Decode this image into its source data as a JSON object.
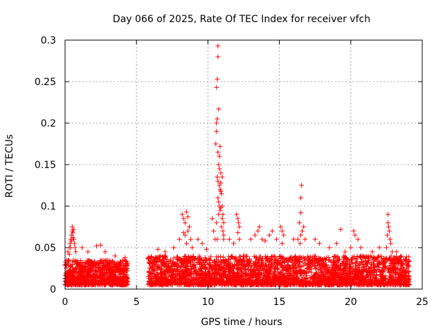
{
  "chart_data": {
    "type": "scatter",
    "title": "Day 066 of 2025, Rate Of TEC Index for receiver vfch",
    "xlabel": "GPS time / hours",
    "ylabel": "ROTI / TECUs",
    "xlim": [
      0,
      25
    ],
    "ylim": [
      0,
      0.3
    ],
    "xticks": [
      0,
      5,
      10,
      15,
      20,
      25
    ],
    "xtick_labels": [
      "0",
      "5",
      "10",
      "15",
      "20",
      "25"
    ],
    "yticks": [
      0,
      0.05,
      0.1,
      0.15,
      0.2,
      0.25,
      0.3
    ],
    "ytick_labels": [
      "0",
      "0.05",
      "0.1",
      "0.15",
      "0.2",
      "0.25",
      "0.3"
    ],
    "grid": true,
    "marker": "+",
    "series": [
      {
        "name": "ROTI",
        "color": "#ff0000",
        "dense_segments": [
          {
            "x_start": 0.0,
            "x_end": 4.4,
            "y_min": 0.005,
            "y_max": 0.035,
            "count": 900
          },
          {
            "x_start": 5.8,
            "x_end": 24.1,
            "y_min": 0.005,
            "y_max": 0.04,
            "count": 3000
          }
        ],
        "points": [
          [
            0.2,
            0.045
          ],
          [
            0.3,
            0.05
          ],
          [
            0.35,
            0.055
          ],
          [
            0.4,
            0.06
          ],
          [
            0.45,
            0.065
          ],
          [
            0.5,
            0.07
          ],
          [
            0.5,
            0.075
          ],
          [
            0.55,
            0.068
          ],
          [
            0.6,
            0.06
          ],
          [
            0.65,
            0.055
          ],
          [
            0.7,
            0.05
          ],
          [
            0.45,
            0.058
          ],
          [
            0.55,
            0.062
          ],
          [
            0.6,
            0.072
          ],
          [
            0.4,
            0.05
          ],
          [
            0.75,
            0.045
          ],
          [
            0.3,
            0.042
          ],
          [
            1.2,
            0.05
          ],
          [
            1.6,
            0.045
          ],
          [
            2.2,
            0.052
          ],
          [
            2.5,
            0.053
          ],
          [
            2.8,
            0.045
          ],
          [
            3.5,
            0.04
          ],
          [
            4.2,
            0.038
          ],
          [
            6.5,
            0.048
          ],
          [
            7.0,
            0.045
          ],
          [
            7.6,
            0.05
          ],
          [
            8.0,
            0.06
          ],
          [
            8.2,
            0.09
          ],
          [
            8.3,
            0.085
          ],
          [
            8.4,
            0.08
          ],
          [
            8.5,
            0.093
          ],
          [
            8.6,
            0.087
          ],
          [
            8.7,
            0.075
          ],
          [
            8.4,
            0.065
          ],
          [
            8.6,
            0.07
          ],
          [
            8.8,
            0.06
          ],
          [
            8.5,
            0.055
          ],
          [
            8.3,
            0.068
          ],
          [
            8.9,
            0.05
          ],
          [
            9.3,
            0.06
          ],
          [
            9.6,
            0.055
          ],
          [
            9.9,
            0.048
          ],
          [
            10.3,
            0.085
          ],
          [
            10.4,
            0.07
          ],
          [
            10.5,
            0.06
          ],
          [
            10.55,
            0.175
          ],
          [
            10.6,
            0.19
          ],
          [
            10.6,
            0.2
          ],
          [
            10.65,
            0.205
          ],
          [
            10.6,
            0.243
          ],
          [
            10.65,
            0.253
          ],
          [
            10.7,
            0.28
          ],
          [
            10.7,
            0.293
          ],
          [
            10.75,
            0.217
          ],
          [
            10.7,
            0.165
          ],
          [
            10.8,
            0.16
          ],
          [
            10.85,
            0.172
          ],
          [
            10.9,
            0.14
          ],
          [
            10.75,
            0.15
          ],
          [
            10.65,
            0.135
          ],
          [
            10.7,
            0.13
          ],
          [
            10.8,
            0.125
          ],
          [
            10.85,
            0.12
          ],
          [
            10.9,
            0.118
          ],
          [
            10.7,
            0.11
          ],
          [
            10.75,
            0.105
          ],
          [
            10.8,
            0.1
          ],
          [
            10.85,
            0.095
          ],
          [
            10.9,
            0.098
          ],
          [
            11.0,
            0.1
          ],
          [
            11.05,
            0.09
          ],
          [
            11.0,
            0.085
          ],
          [
            11.1,
            0.08
          ],
          [
            10.95,
            0.075
          ],
          [
            11.05,
            0.07
          ],
          [
            11.1,
            0.065
          ],
          [
            10.6,
            0.08
          ],
          [
            10.75,
            0.09
          ],
          [
            10.95,
            0.115
          ],
          [
            10.9,
            0.128
          ],
          [
            11.0,
            0.135
          ],
          [
            10.8,
            0.145
          ],
          [
            11.1,
            0.06
          ],
          [
            10.65,
            0.06
          ],
          [
            11.5,
            0.06
          ],
          [
            11.8,
            0.055
          ],
          [
            12.0,
            0.09
          ],
          [
            12.1,
            0.085
          ],
          [
            12.15,
            0.08
          ],
          [
            12.2,
            0.075
          ],
          [
            12.1,
            0.068
          ],
          [
            12.2,
            0.06
          ],
          [
            13.0,
            0.06
          ],
          [
            13.3,
            0.065
          ],
          [
            13.5,
            0.07
          ],
          [
            13.6,
            0.075
          ],
          [
            13.8,
            0.06
          ],
          [
            14.0,
            0.058
          ],
          [
            14.3,
            0.065
          ],
          [
            14.5,
            0.07
          ],
          [
            14.8,
            0.06
          ],
          [
            15.1,
            0.075
          ],
          [
            15.2,
            0.07
          ],
          [
            15.3,
            0.065
          ],
          [
            15.2,
            0.055
          ],
          [
            16.0,
            0.06
          ],
          [
            16.3,
            0.06
          ],
          [
            16.5,
            0.065
          ],
          [
            16.4,
            0.08
          ],
          [
            16.5,
            0.092
          ],
          [
            16.5,
            0.11
          ],
          [
            16.55,
            0.125
          ],
          [
            16.6,
            0.07
          ],
          [
            16.7,
            0.075
          ],
          [
            16.8,
            0.06
          ],
          [
            16.45,
            0.055
          ],
          [
            17.5,
            0.06
          ],
          [
            17.8,
            0.055
          ],
          [
            18.5,
            0.05
          ],
          [
            19.0,
            0.055
          ],
          [
            19.3,
            0.072
          ],
          [
            19.6,
            0.045
          ],
          [
            20.0,
            0.05
          ],
          [
            20.2,
            0.07
          ],
          [
            20.3,
            0.065
          ],
          [
            20.5,
            0.06
          ],
          [
            20.7,
            0.05
          ],
          [
            21.5,
            0.045
          ],
          [
            22.0,
            0.05
          ],
          [
            22.6,
            0.09
          ],
          [
            22.6,
            0.08
          ],
          [
            22.65,
            0.075
          ],
          [
            22.7,
            0.07
          ],
          [
            22.55,
            0.065
          ],
          [
            22.75,
            0.06
          ],
          [
            22.8,
            0.055
          ],
          [
            22.5,
            0.05
          ],
          [
            22.9,
            0.045
          ],
          [
            23.2,
            0.045
          ],
          [
            23.5,
            0.04
          ]
        ]
      }
    ]
  }
}
